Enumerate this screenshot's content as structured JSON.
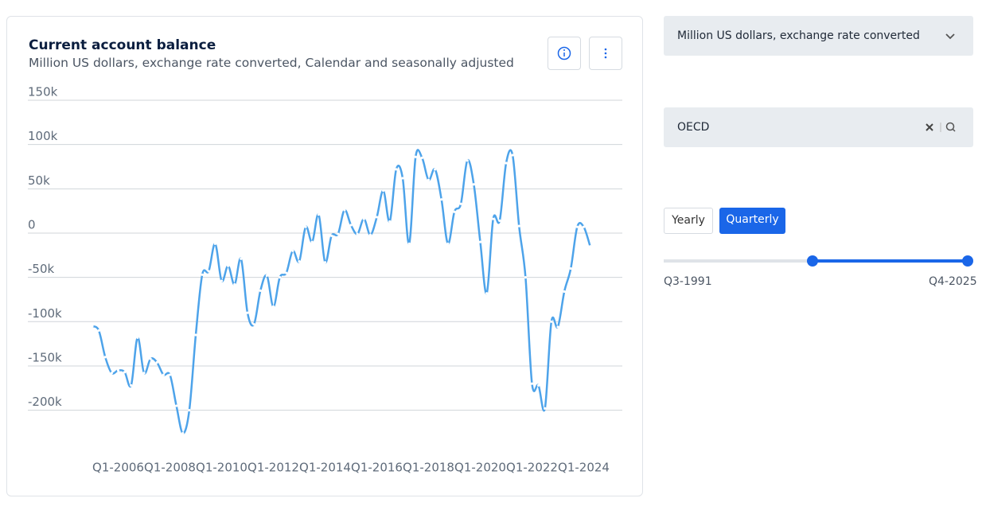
{
  "chart_data": {
    "type": "line",
    "title": "Current account balance",
    "subtitle": "Million US dollars, exchange rate converted, Calendar and seasonally adjusted",
    "categories": [
      null,
      null,
      null,
      null,
      "Q1-2006",
      null,
      null,
      null,
      null,
      null,
      null,
      null,
      "Q1-2008",
      null,
      null,
      null,
      null,
      null,
      null,
      null,
      "Q1-2010",
      null,
      null,
      null,
      null,
      null,
      null,
      null,
      "Q1-2012",
      null,
      null,
      null,
      null,
      null,
      null,
      null,
      "Q1-2014",
      null,
      null,
      null,
      null,
      null,
      null,
      null,
      "Q1-2016",
      null,
      null,
      null,
      null,
      null,
      null,
      null,
      "Q1-2018",
      null,
      null,
      null,
      null,
      null,
      null,
      null,
      "Q1-2020",
      null,
      null,
      null,
      null,
      null,
      null,
      null,
      "Q1-2022",
      null,
      null,
      null,
      null,
      null,
      null,
      null,
      "Q1-2024",
      null
    ],
    "series": [
      {
        "name": "OECD",
        "color": "#4da3ea",
        "values": [
          -105000,
          -110000,
          -140000,
          -158000,
          -155000,
          -157000,
          -172000,
          -118000,
          -158000,
          -142000,
          -146000,
          -160000,
          -160000,
          -195000,
          -226000,
          -200000,
          -115000,
          -47000,
          -43000,
          -12000,
          -54000,
          -37000,
          -58000,
          -29000,
          -90000,
          -103000,
          -65000,
          -48000,
          -83000,
          -50000,
          -45000,
          -20000,
          -32000,
          7000,
          -10000,
          21000,
          -33000,
          -3000,
          -1000,
          26000,
          9000,
          -1000,
          16000,
          -2000,
          18000,
          48000,
          13000,
          72000,
          62000,
          -12000,
          86000,
          85000,
          60000,
          72000,
          38000,
          -12000,
          24000,
          33000,
          82000,
          55000,
          -10000,
          -68000,
          16000,
          14000,
          79000,
          88000,
          8000,
          -50000,
          -170000,
          -172000,
          -198000,
          -100000,
          -106000,
          -66000,
          -40000,
          7000,
          7000,
          -15000
        ]
      }
    ],
    "ylim": [
      -230000,
      150000
    ],
    "yticks": [
      {
        "value": -200000,
        "label": "-200k"
      },
      {
        "value": -150000,
        "label": "-150k"
      },
      {
        "value": -100000,
        "label": "-100k"
      },
      {
        "value": -50000,
        "label": "-50k"
      },
      0,
      {
        "value": 50000,
        "label": "50k"
      },
      {
        "value": 100000,
        "label": "100k"
      },
      {
        "value": 150000,
        "label": "150k"
      }
    ],
    "grid": true
  },
  "controls": {
    "unit": "Million US dollars, exchange rate converted",
    "search": "OECD",
    "frequency": [
      "Yearly",
      "Quarterly"
    ],
    "range_start": "Q3-1991",
    "range_end": "Q4-2025"
  }
}
